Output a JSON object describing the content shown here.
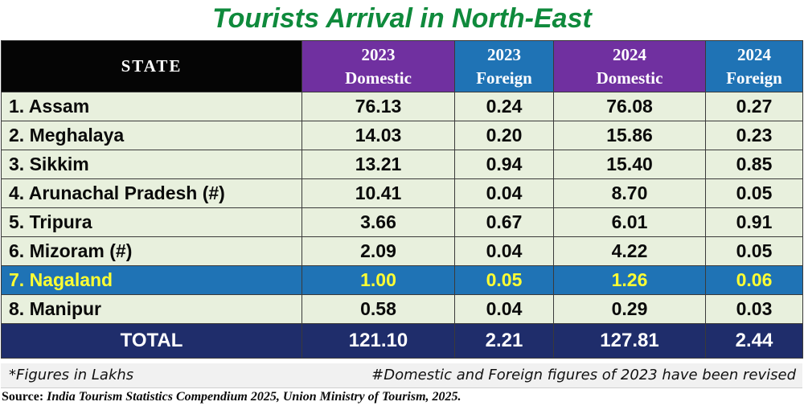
{
  "title": "Tourists Arrival in North-East",
  "headers": {
    "state": "STATE",
    "c1_line1": "2023",
    "c1_line2": "Domestic",
    "c2_line1": "2023",
    "c2_line2": "Foreign",
    "c3_line1": "2024",
    "c3_line2": "Domestic",
    "c4_line1": "2024",
    "c4_line2": "Foreign"
  },
  "rows": [
    {
      "state": "1. Assam",
      "d2023": "76.13",
      "f2023": "0.24",
      "d2024": "76.08",
      "f2024": "0.27"
    },
    {
      "state": "2. Meghalaya",
      "d2023": "14.03",
      "f2023": "0.20",
      "d2024": "15.86",
      "f2024": "0.23"
    },
    {
      "state": "3. Sikkim",
      "d2023": "13.21",
      "f2023": "0.94",
      "d2024": "15.40",
      "f2024": "0.85"
    },
    {
      "state": "4. Arunachal Pradesh (#)",
      "d2023": "10.41",
      "f2023": "0.04",
      "d2024": "8.70",
      "f2024": "0.05"
    },
    {
      "state": "5. Tripura",
      "d2023": "3.66",
      "f2023": "0.67",
      "d2024": "6.01",
      "f2024": "0.91"
    },
    {
      "state": "6. Mizoram (#)",
      "d2023": "2.09",
      "f2023": "0.04",
      "d2024": "4.22",
      "f2024": "0.05"
    },
    {
      "state": "7. Nagaland",
      "d2023": "1.00",
      "f2023": "0.05",
      "d2024": "1.26",
      "f2024": "0.06"
    },
    {
      "state": "8. Manipur",
      "d2023": "0.58",
      "f2023": "0.04",
      "d2024": "0.29",
      "f2024": "0.03"
    }
  ],
  "total": {
    "label": "TOTAL",
    "d2023": "121.10",
    "f2023": "2.21",
    "d2024": "127.81",
    "f2024": "2.44"
  },
  "notes": {
    "left": "*Figures in Lakhs",
    "right": "#Domestic and Foreign  figures of 2023 have been revised"
  },
  "source": {
    "label": "Source:",
    "text": "India Tourism Statistics Compendium 2025, Union Ministry of Tourism, 2025."
  },
  "colors": {
    "title": "#0f8a3c",
    "domestic_header": "#7030a0",
    "foreign_header": "#1f73b5",
    "highlight_row": "#1f73b5",
    "highlight_text": "#ffff33",
    "total_row": "#1f2d6b",
    "row_bg": "#e8f0dd"
  }
}
